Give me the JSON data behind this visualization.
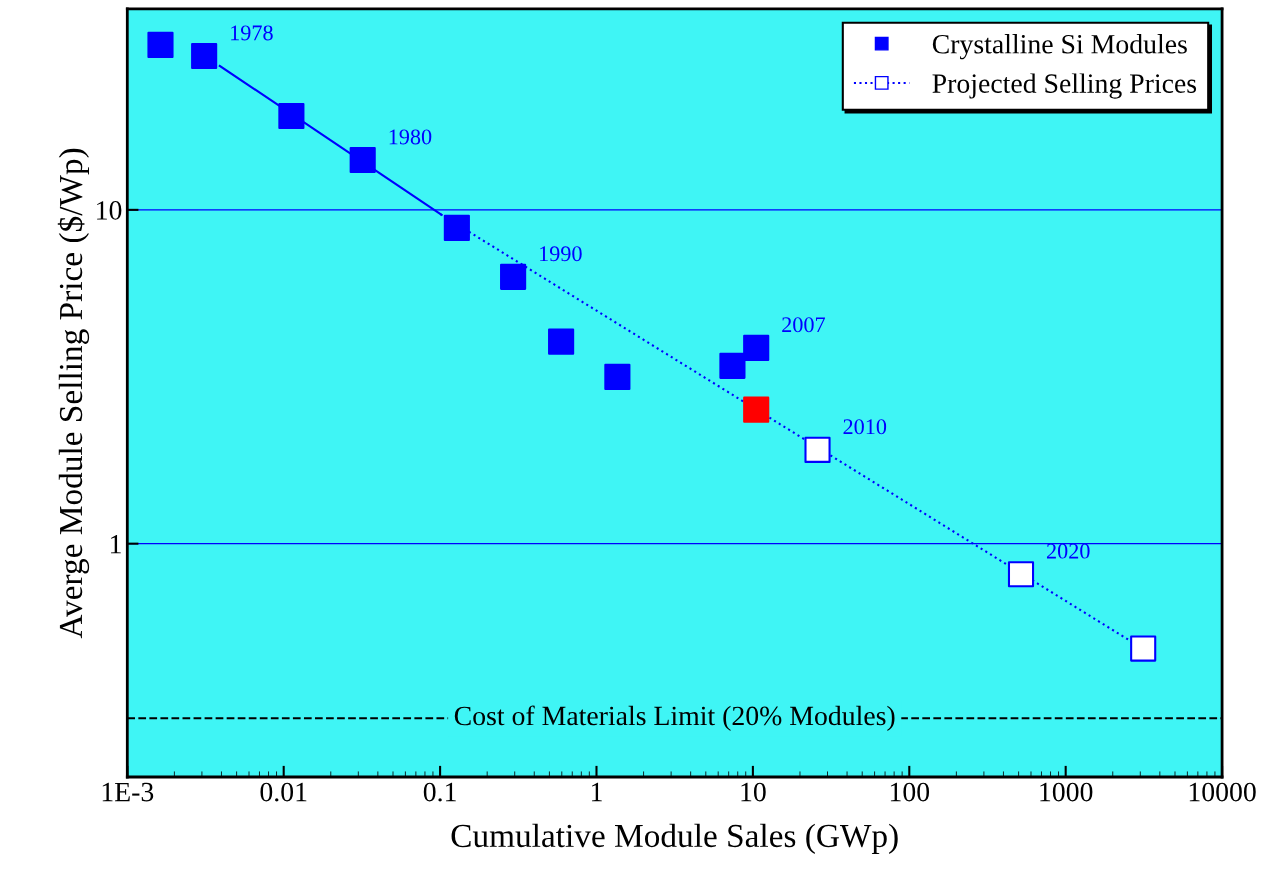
{
  "chart_data": {
    "type": "scatter",
    "xlabel": "Cumulative Module Sales (GWp)",
    "ylabel": "Averge Module Selling Price ($/Wp)",
    "log": "xy",
    "xlim": [
      0.001,
      10000
    ],
    "xticks": [
      {
        "value": 0.001,
        "label": "1E-3"
      },
      0.01,
      0.1,
      1,
      10,
      100,
      1000,
      10000
    ],
    "ylim": [
      0.2,
      40
    ],
    "yticks": [
      1,
      10
    ],
    "grid": "y",
    "legend": "top right",
    "series": [
      {
        "name": "Crystalline Si Modules",
        "marker": "square",
        "color": "#0000ff",
        "x": [
          0.00163,
          0.0031,
          0.0112,
          0.032,
          0.128,
          0.293,
          0.594,
          1.36,
          7.4,
          10.5
        ],
        "values": [
          31.2,
          28.9,
          19.1,
          14.1,
          8.83,
          6.3,
          4.03,
          3.16,
          3.41,
          3.86
        ]
      },
      {
        "marker": "square",
        "color": "#ff0000",
        "x": [
          10.5
        ],
        "values": [
          2.52
        ]
      },
      {
        "name": "Projected Selling Prices",
        "marker": "square",
        "color": "#0000ff",
        "line_style": "dotted",
        "x": [
          25.9,
          518,
          3130
        ],
        "values": [
          1.91,
          0.81,
          0.485
        ]
      },
      {
        "type": "line",
        "marker": "none",
        "color": "#0000ff",
        "line_style": "solid",
        "x": [
          0.0039,
          0.101
        ],
        "values": [
          27,
          9.7
        ]
      },
      {
        "type": "line",
        "marker": "none",
        "color": "#0000ff",
        "line_style": "dotted",
        "x": [
          0.101,
          3000
        ],
        "values": [
          9.7,
          0.49
        ]
      }
    ],
    "ref_lines": [
      {
        "axis": "y",
        "value": 0.3,
        "label": "Cost of Materials Limit (20% Modules)",
        "color": "#000000",
        "line_style": "dashed"
      }
    ],
    "annotations": [
      {
        "text": "1978",
        "x": 0.0031,
        "y": 28.9
      },
      {
        "text": "1980",
        "x": 0.032,
        "y": 14.1
      },
      {
        "text": "1990",
        "x": 0.293,
        "y": 6.3
      },
      {
        "text": "2007",
        "x": 10.5,
        "y": 3.86
      },
      {
        "text": "2010",
        "x": 25.9,
        "y": 1.91
      },
      {
        "text": "2020",
        "x": 518,
        "y": 0.81
      }
    ]
  }
}
